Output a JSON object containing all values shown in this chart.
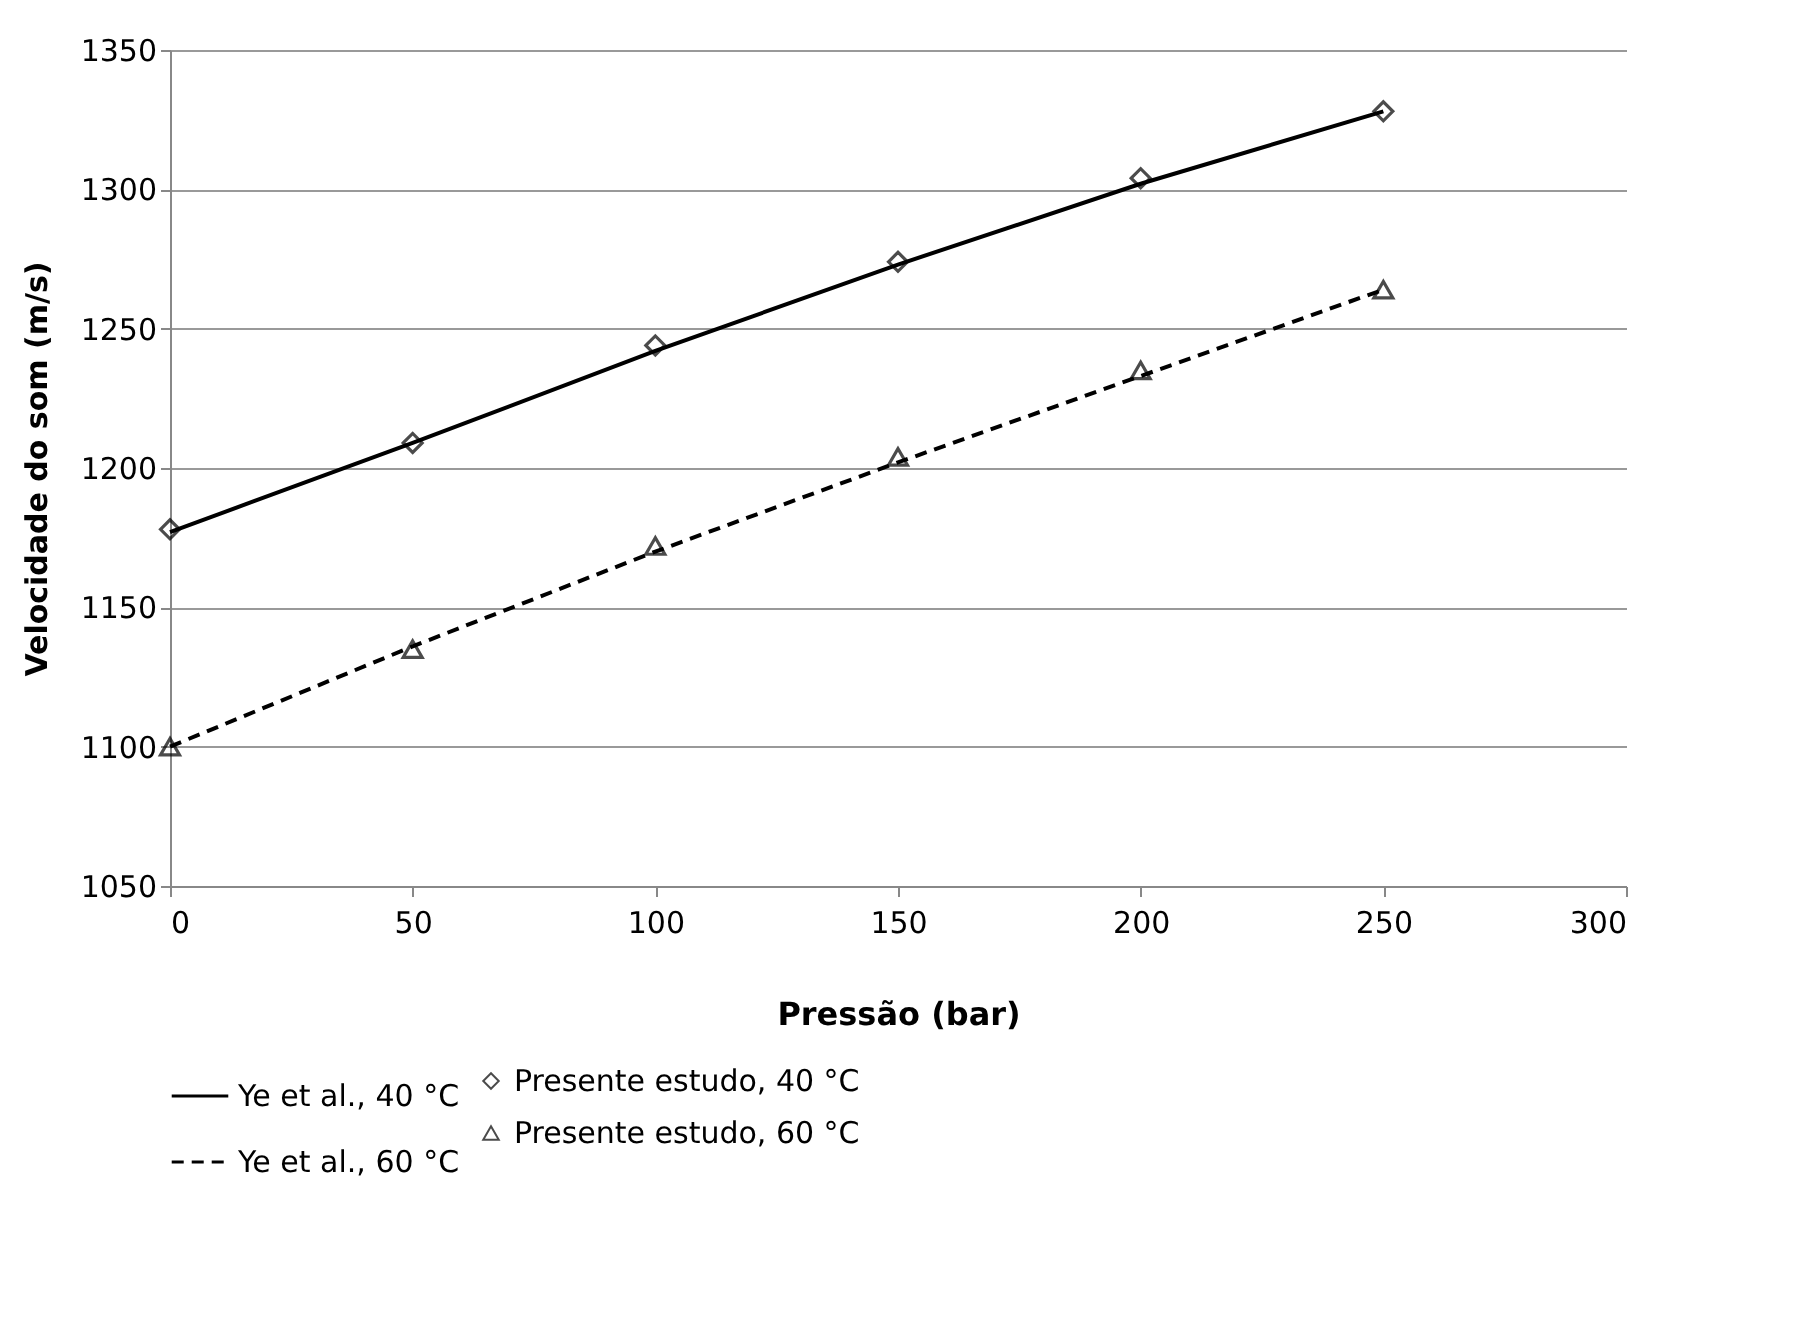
{
  "chart_data": {
    "type": "line",
    "xlabel": "Pressão (bar)",
    "ylabel": "Velocidade do som (m/s)",
    "x": [
      0,
      50,
      100,
      150,
      200,
      250
    ],
    "series": [
      {
        "name": "Presente estudo, 40 °C",
        "type": "scatter",
        "marker": "diamond",
        "color": "#000000",
        "values": [
          1178,
          1209,
          1244,
          1274,
          1304,
          1328
        ]
      },
      {
        "name": "Presente estudo, 60 °C",
        "type": "scatter",
        "marker": "triangle",
        "color": "#000000",
        "values": [
          1100,
          1135,
          1172,
          1204,
          1235,
          1264
        ]
      },
      {
        "name": "Ye et al., 40 °C",
        "line_style": "solid",
        "color": "#000000",
        "values": [
          1177,
          1209,
          1242,
          1273,
          1302,
          1328
        ]
      },
      {
        "name": "Ye et al., 60 °C",
        "line_style": "dashed",
        "color": "#000000",
        "values": [
          1100,
          1136,
          1170,
          1202,
          1233,
          1264
        ]
      }
    ],
    "xlim": [
      0,
      300
    ],
    "xticks": [
      0,
      50,
      100,
      150,
      200,
      250,
      300
    ],
    "ylim": [
      1050,
      1350
    ],
    "yticks": [
      1050,
      1100,
      1150,
      1200,
      1250,
      1300,
      1350
    ],
    "grid": "y",
    "legend": "bottom"
  }
}
